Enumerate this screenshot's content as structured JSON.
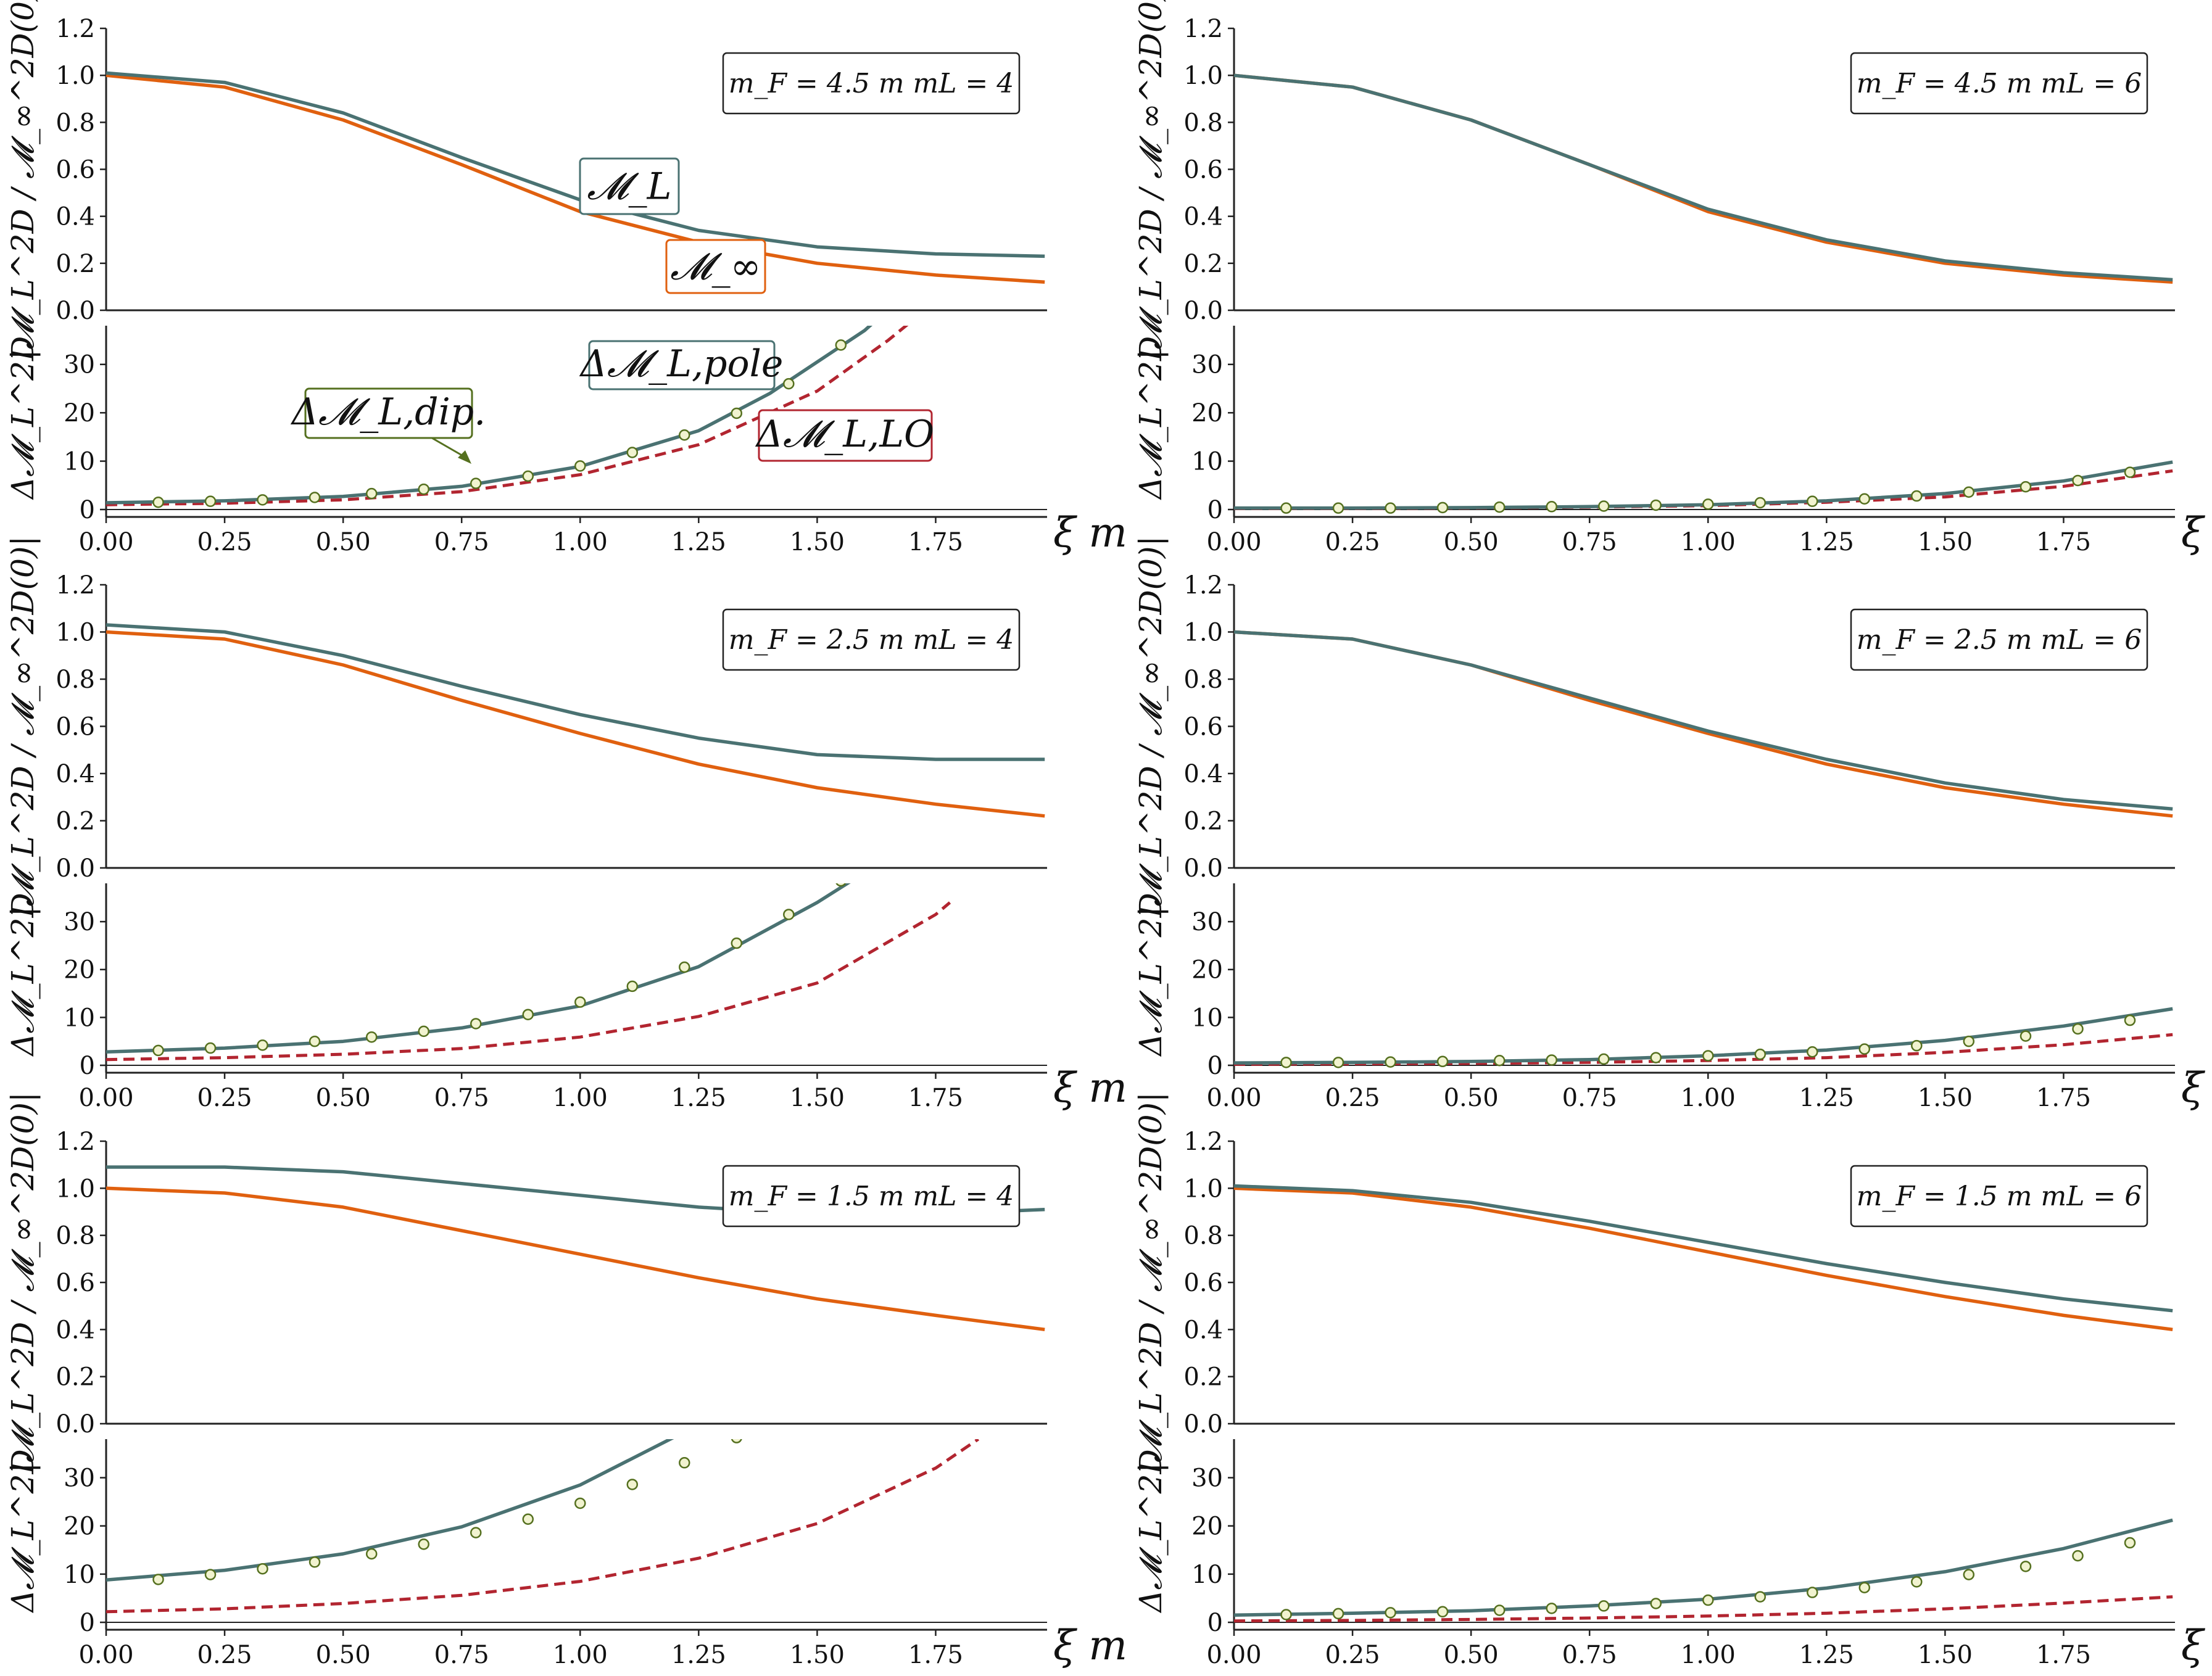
{
  "colors": {
    "M_L": "#4a7272",
    "M_inf": "#e0600f",
    "LO": "#b22530",
    "pole": "#4a7272",
    "dip_face": "#f1f3cf",
    "dip_edge": "#55701f",
    "annot_dip": "#55701f"
  },
  "labels": {
    "top_ylabel": "|𝓜_L^2D / 𝓜_∞^2D(0)|",
    "bottom_ylabel": "Δ𝓜_L^2D",
    "xlabel": "ξ m",
    "ann_ML": "𝓜_L",
    "ann_Minf": "𝓜_∞",
    "ann_pole": "Δ𝓜_L,pole",
    "ann_dip": "Δ𝓜_L,dip.",
    "ann_LO": "Δ𝓜_L,LO"
  },
  "chart_data": [
    {
      "type": "line",
      "panel": "mF=4.5, mL=4",
      "params": "m_F = 4.5 m   mL = 4",
      "x_ticks": [
        "0.00",
        "0.25",
        "0.50",
        "0.75",
        "1.00",
        "1.25",
        "1.50",
        "1.75"
      ],
      "top": {
        "ylim": [
          0,
          1.2
        ],
        "y_ticks": [
          "0.0",
          "0.2",
          "0.4",
          "0.6",
          "0.8",
          "1.0",
          "1.2"
        ],
        "x": [
          0,
          0.25,
          0.5,
          0.75,
          1.0,
          1.25,
          1.5,
          1.75,
          1.98
        ],
        "series": [
          {
            "name": "𝓜_L",
            "values": [
              1.01,
              0.97,
              0.84,
              0.65,
              0.47,
              0.34,
              0.27,
              0.24,
              0.23
            ]
          },
          {
            "name": "𝓜_∞",
            "values": [
              1.0,
              0.95,
              0.81,
              0.62,
              0.42,
              0.29,
              0.2,
              0.15,
              0.12
            ]
          }
        ]
      },
      "bottom": {
        "ylim": [
          0,
          38
        ],
        "y_ticks": [
          "0",
          "10",
          "20",
          "30"
        ],
        "pole_x": [
          0,
          0.25,
          0.5,
          0.75,
          1.0,
          1.25,
          1.4,
          1.6,
          1.68
        ],
        "pole": [
          1.4,
          1.8,
          2.7,
          4.8,
          8.9,
          16.3,
          24.0,
          37.0,
          44.0
        ],
        "LO_x": [
          0,
          0.25,
          0.5,
          0.75,
          1.0,
          1.25,
          1.5,
          1.65,
          1.7
        ],
        "LO": [
          1.0,
          1.3,
          2.0,
          3.7,
          7.2,
          13.4,
          24.5,
          35.0,
          39.0
        ],
        "dip_x": [
          0.11,
          0.22,
          0.33,
          0.44,
          0.56,
          0.67,
          0.78,
          0.89,
          1.0,
          1.11,
          1.22,
          1.33,
          1.44,
          1.55
        ],
        "dip": [
          1.5,
          1.7,
          2.0,
          2.5,
          3.3,
          4.2,
          5.4,
          6.9,
          9.0,
          11.8,
          15.4,
          19.9,
          26.0,
          34.0
        ]
      }
    },
    {
      "type": "line",
      "panel": "mF=4.5, mL=6",
      "params": "m_F = 4.5 m   mL = 6",
      "x_ticks": [
        "0.00",
        "0.25",
        "0.50",
        "0.75",
        "1.00",
        "1.25",
        "1.50",
        "1.75"
      ],
      "top": {
        "ylim": [
          0,
          1.2
        ],
        "y_ticks": [
          "0.0",
          "0.2",
          "0.4",
          "0.6",
          "0.8",
          "1.0",
          "1.2"
        ],
        "x": [
          0,
          0.25,
          0.5,
          0.75,
          1.0,
          1.25,
          1.5,
          1.75,
          1.98
        ],
        "series": [
          {
            "name": "𝓜_L",
            "values": [
              1.0,
              0.95,
              0.81,
              0.62,
              0.43,
              0.3,
              0.21,
              0.16,
              0.13
            ]
          },
          {
            "name": "𝓜_∞",
            "values": [
              1.0,
              0.95,
              0.81,
              0.62,
              0.42,
              0.29,
              0.2,
              0.15,
              0.12
            ]
          }
        ]
      },
      "bottom": {
        "ylim": [
          0,
          38
        ],
        "y_ticks": [
          "0",
          "10",
          "20",
          "30"
        ],
        "pole_x": [
          0,
          0.25,
          0.5,
          0.75,
          1.0,
          1.25,
          1.5,
          1.75,
          1.98
        ],
        "pole": [
          0.3,
          0.3,
          0.4,
          0.6,
          1.0,
          1.8,
          3.3,
          5.9,
          9.8
        ],
        "LO_x": [
          0,
          0.25,
          0.5,
          0.75,
          1.0,
          1.25,
          1.5,
          1.75,
          1.98
        ],
        "LO": [
          0.2,
          0.2,
          0.3,
          0.5,
          0.8,
          1.5,
          2.6,
          4.8,
          8.0
        ],
        "dip_x": [
          0.11,
          0.22,
          0.33,
          0.44,
          0.56,
          0.67,
          0.78,
          0.89,
          1.0,
          1.11,
          1.22,
          1.33,
          1.44,
          1.55,
          1.67,
          1.78,
          1.89
        ],
        "dip": [
          0.3,
          0.3,
          0.3,
          0.4,
          0.5,
          0.6,
          0.7,
          0.9,
          1.1,
          1.4,
          1.7,
          2.2,
          2.8,
          3.6,
          4.7,
          6.0,
          7.7
        ]
      }
    },
    {
      "type": "line",
      "panel": "mF=2.5, mL=4",
      "params": "m_F = 2.5 m   mL = 4",
      "x_ticks": [
        "0.00",
        "0.25",
        "0.50",
        "0.75",
        "1.00",
        "1.25",
        "1.50",
        "1.75"
      ],
      "top": {
        "ylim": [
          0,
          1.2
        ],
        "y_ticks": [
          "0.0",
          "0.2",
          "0.4",
          "0.6",
          "0.8",
          "1.0",
          "1.2"
        ],
        "x": [
          0,
          0.25,
          0.5,
          0.75,
          1.0,
          1.25,
          1.5,
          1.75,
          1.98
        ],
        "series": [
          {
            "name": "𝓜_L",
            "values": [
              1.03,
              1.0,
              0.9,
              0.77,
              0.65,
              0.55,
              0.48,
              0.46,
              0.46
            ]
          },
          {
            "name": "𝓜_∞",
            "values": [
              1.0,
              0.97,
              0.86,
              0.71,
              0.57,
              0.44,
              0.34,
              0.27,
              0.22
            ]
          }
        ]
      },
      "bottom": {
        "ylim": [
          0,
          38
        ],
        "y_ticks": [
          "0",
          "10",
          "20",
          "30"
        ],
        "pole_x": [
          0,
          0.25,
          0.5,
          0.75,
          1.0,
          1.25,
          1.5,
          1.58
        ],
        "pole": [
          2.8,
          3.6,
          5.0,
          7.8,
          12.4,
          20.6,
          34.0,
          39.0
        ],
        "LO_x": [
          0,
          0.25,
          0.5,
          0.75,
          1.0,
          1.25,
          1.5,
          1.75,
          1.78
        ],
        "LO": [
          1.2,
          1.6,
          2.3,
          3.5,
          5.9,
          10.2,
          17.2,
          31.5,
          34.0
        ],
        "dip_x": [
          0.11,
          0.22,
          0.33,
          0.44,
          0.56,
          0.67,
          0.78,
          0.89,
          1.0,
          1.11,
          1.22,
          1.33,
          1.44,
          1.55
        ],
        "dip": [
          3.1,
          3.6,
          4.2,
          5.0,
          5.9,
          7.1,
          8.7,
          10.6,
          13.2,
          16.5,
          20.5,
          25.5,
          31.5,
          38.5
        ]
      }
    },
    {
      "type": "line",
      "panel": "mF=2.5, mL=6",
      "params": "m_F = 2.5 m   mL = 6",
      "x_ticks": [
        "0.00",
        "0.25",
        "0.50",
        "0.75",
        "1.00",
        "1.25",
        "1.50",
        "1.75"
      ],
      "top": {
        "ylim": [
          0,
          1.2
        ],
        "y_ticks": [
          "0.0",
          "0.2",
          "0.4",
          "0.6",
          "0.8",
          "1.0",
          "1.2"
        ],
        "x": [
          0,
          0.25,
          0.5,
          0.75,
          1.0,
          1.25,
          1.5,
          1.75,
          1.98
        ],
        "series": [
          {
            "name": "𝓜_L",
            "values": [
              1.0,
              0.97,
              0.86,
              0.72,
              0.58,
              0.46,
              0.36,
              0.29,
              0.25
            ]
          },
          {
            "name": "𝓜_∞",
            "values": [
              1.0,
              0.97,
              0.86,
              0.71,
              0.57,
              0.44,
              0.34,
              0.27,
              0.22
            ]
          }
        ]
      },
      "bottom": {
        "ylim": [
          0,
          38
        ],
        "y_ticks": [
          "0",
          "10",
          "20",
          "30"
        ],
        "pole_x": [
          0,
          0.25,
          0.5,
          0.75,
          1.0,
          1.25,
          1.5,
          1.75,
          1.98
        ],
        "pole": [
          0.5,
          0.6,
          0.8,
          1.2,
          2.0,
          3.2,
          5.2,
          8.2,
          11.8
        ],
        "LO_x": [
          0,
          0.25,
          0.5,
          0.75,
          1.0,
          1.25,
          1.5,
          1.75,
          1.98
        ],
        "LO": [
          0.2,
          0.3,
          0.4,
          0.6,
          1.0,
          1.6,
          2.7,
          4.3,
          6.4
        ],
        "dip_x": [
          0.11,
          0.22,
          0.33,
          0.44,
          0.56,
          0.67,
          0.78,
          0.89,
          1.0,
          1.11,
          1.22,
          1.33,
          1.44,
          1.55,
          1.67,
          1.78,
          1.89
        ],
        "dip": [
          0.6,
          0.6,
          0.7,
          0.8,
          1.0,
          1.1,
          1.3,
          1.6,
          2.0,
          2.3,
          2.8,
          3.4,
          4.1,
          5.0,
          6.1,
          7.6,
          9.4
        ]
      }
    },
    {
      "type": "line",
      "panel": "mF=1.5, mL=4",
      "params": "m_F = 1.5 m   mL = 4",
      "x_ticks": [
        "0.00",
        "0.25",
        "0.50",
        "0.75",
        "1.00",
        "1.25",
        "1.50",
        "1.75"
      ],
      "top": {
        "ylim": [
          0,
          1.2
        ],
        "y_ticks": [
          "0.0",
          "0.2",
          "0.4",
          "0.6",
          "0.8",
          "1.0",
          "1.2"
        ],
        "x": [
          0,
          0.25,
          0.5,
          0.75,
          1.0,
          1.25,
          1.5,
          1.75,
          1.98
        ],
        "series": [
          {
            "name": "𝓜_L",
            "values": [
              1.09,
              1.09,
              1.07,
              1.02,
              0.97,
              0.92,
              0.89,
              0.89,
              0.91
            ]
          },
          {
            "name": "𝓜_∞",
            "values": [
              1.0,
              0.98,
              0.92,
              0.82,
              0.72,
              0.62,
              0.53,
              0.46,
              0.4
            ]
          }
        ]
      },
      "bottom": {
        "ylim": [
          0,
          38
        ],
        "y_ticks": [
          "0",
          "10",
          "20",
          "30"
        ],
        "pole_x": [
          0,
          0.25,
          0.5,
          0.75,
          1.0,
          1.25,
          1.3
        ],
        "pole": [
          8.8,
          10.8,
          14.2,
          19.8,
          28.5,
          41.0,
          44.0
        ],
        "LO_x": [
          0,
          0.25,
          0.5,
          0.75,
          1.0,
          1.25,
          1.5,
          1.75,
          1.84
        ],
        "LO": [
          2.2,
          2.8,
          3.9,
          5.6,
          8.5,
          13.3,
          20.5,
          32.0,
          38.0
        ],
        "dip_x": [
          0.11,
          0.22,
          0.33,
          0.44,
          0.56,
          0.67,
          0.78,
          0.89,
          1.0,
          1.11,
          1.22,
          1.33
        ],
        "dip": [
          8.9,
          9.9,
          11.1,
          12.5,
          14.2,
          16.2,
          18.6,
          21.4,
          24.7,
          28.6,
          33.1,
          38.3
        ]
      }
    },
    {
      "type": "line",
      "panel": "mF=1.5, mL=6",
      "params": "m_F = 1.5 m   mL = 6",
      "x_ticks": [
        "0.00",
        "0.25",
        "0.50",
        "0.75",
        "1.00",
        "1.25",
        "1.50",
        "1.75"
      ],
      "top": {
        "ylim": [
          0,
          1.2
        ],
        "y_ticks": [
          "0.0",
          "0.2",
          "0.4",
          "0.6",
          "0.8",
          "1.0",
          "1.2"
        ],
        "x": [
          0,
          0.25,
          0.5,
          0.75,
          1.0,
          1.25,
          1.5,
          1.75,
          1.98
        ],
        "series": [
          {
            "name": "𝓜_L",
            "values": [
              1.01,
              0.99,
              0.94,
              0.86,
              0.77,
              0.68,
              0.6,
              0.53,
              0.48
            ]
          },
          {
            "name": "𝓜_∞",
            "values": [
              1.0,
              0.98,
              0.92,
              0.83,
              0.73,
              0.63,
              0.54,
              0.46,
              0.4
            ]
          }
        ]
      },
      "bottom": {
        "ylim": [
          0,
          38
        ],
        "y_ticks": [
          "0",
          "10",
          "20",
          "30"
        ],
        "pole_x": [
          0,
          0.25,
          0.5,
          0.75,
          1.0,
          1.25,
          1.5,
          1.75,
          1.98
        ],
        "pole": [
          1.5,
          1.9,
          2.4,
          3.4,
          4.8,
          7.1,
          10.5,
          15.3,
          21.2
        ],
        "LO_x": [
          0,
          0.25,
          0.5,
          0.75,
          1.0,
          1.25,
          1.5,
          1.75,
          1.98
        ],
        "LO": [
          0.3,
          0.4,
          0.6,
          0.9,
          1.3,
          1.9,
          2.8,
          4.0,
          5.3
        ],
        "dip_x": [
          0.11,
          0.22,
          0.33,
          0.44,
          0.56,
          0.67,
          0.78,
          0.89,
          1.0,
          1.11,
          1.22,
          1.33,
          1.44,
          1.55,
          1.67,
          1.78,
          1.89
        ],
        "dip": [
          1.6,
          1.8,
          2.0,
          2.2,
          2.5,
          2.9,
          3.4,
          3.9,
          4.6,
          5.3,
          6.2,
          7.2,
          8.4,
          9.9,
          11.6,
          13.8,
          16.5
        ]
      }
    }
  ]
}
